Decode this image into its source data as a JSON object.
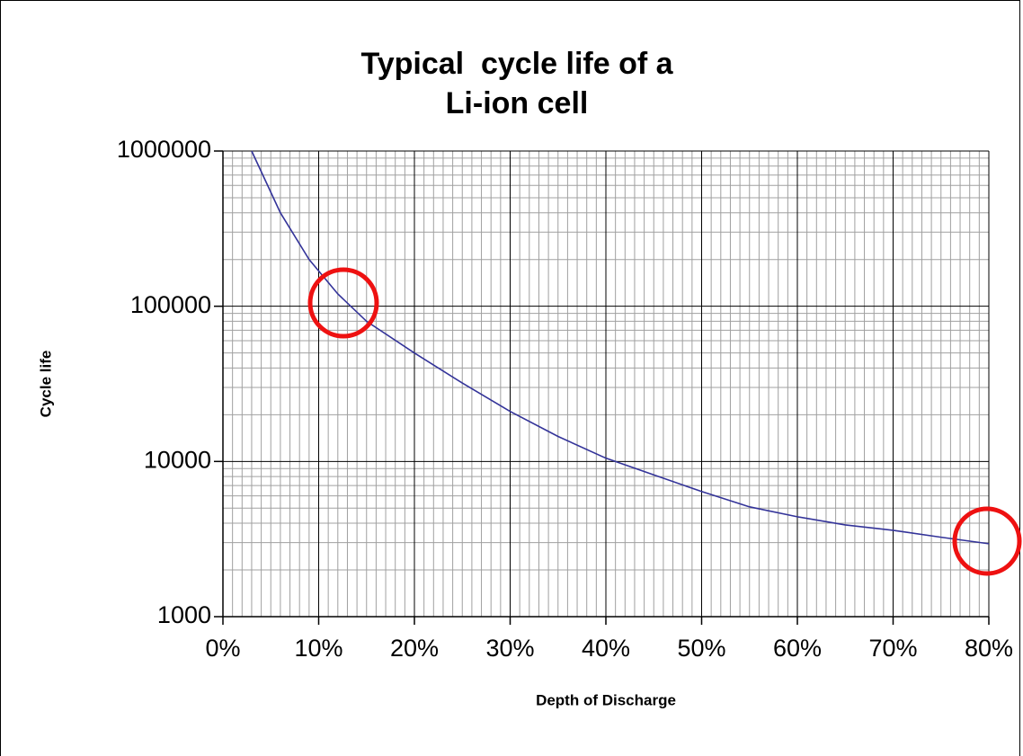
{
  "chart_data": {
    "type": "line",
    "title": [
      "Typical  cycle life of a",
      "Li-ion cell"
    ],
    "x_label": "Depth of Discharge",
    "y_label": "Cycle life",
    "x": [
      3,
      6,
      9,
      12,
      15,
      20,
      25,
      30,
      35,
      40,
      45,
      50,
      55,
      60,
      65,
      70,
      75,
      80
    ],
    "series": [
      {
        "name": "Cycle life",
        "color": "#333399",
        "values": [
          1000000,
          400000,
          200000,
          120000,
          80000,
          50000,
          32000,
          21000,
          14500,
          10500,
          8200,
          6400,
          5100,
          4400,
          3900,
          3600,
          3250,
          2950
        ]
      }
    ],
    "xlim": [
      0,
      80
    ],
    "xticks": [
      {
        "value": 0,
        "label": "0%"
      },
      {
        "value": 10,
        "label": "10%"
      },
      {
        "value": 20,
        "label": "20%"
      },
      {
        "value": 30,
        "label": "30%"
      },
      {
        "value": 40,
        "label": "40%"
      },
      {
        "value": 50,
        "label": "50%"
      },
      {
        "value": 60,
        "label": "60%"
      },
      {
        "value": 70,
        "label": "70%"
      },
      {
        "value": 80,
        "label": "80%"
      }
    ],
    "ylim": [
      1000,
      1000000
    ],
    "yticks": [
      1000,
      10000,
      100000,
      1000000
    ],
    "y_log": true,
    "grid": true,
    "minor_grid": true,
    "legend": false
  }
}
